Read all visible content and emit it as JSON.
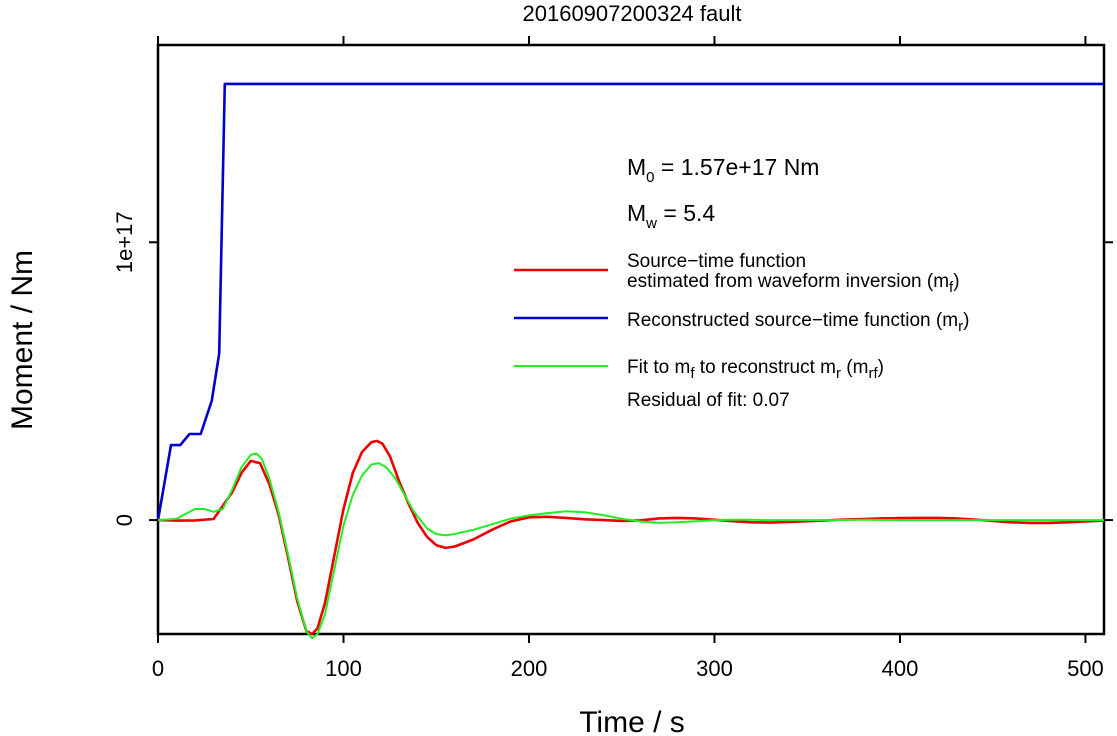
{
  "chart_data": {
    "type": "line",
    "title": "20160907200324 fault",
    "xlabel": "Time / s",
    "ylabel": "Moment / Nm",
    "xlim": [
      0,
      510
    ],
    "ylim": [
      -4.1e+16,
      1.71e+17
    ],
    "x_ticks": [
      {
        "value": 0,
        "label": "0"
      },
      {
        "value": 100,
        "label": "100"
      },
      {
        "value": 200,
        "label": "200"
      },
      {
        "value": 300,
        "label": "300"
      },
      {
        "value": 400,
        "label": "400"
      },
      {
        "value": 500,
        "label": "500"
      }
    ],
    "y_ticks": [
      {
        "value": 0,
        "label": "0"
      },
      {
        "value": 1e+17,
        "label": "1e+17"
      }
    ],
    "grid": false,
    "annotations": {
      "m0": {
        "main": "M",
        "sub": "0",
        "rest": " = 1.57e+17 Nm"
      },
      "mw": {
        "main": "M",
        "sub": "w",
        "rest": " = 5.4"
      },
      "residual": "Residual of fit: 0.07"
    },
    "legend": {
      "placement": "right",
      "entries": [
        {
          "series": "mf",
          "color": "#ee0000",
          "line1": "Source−time function",
          "line2": "estimated from waveform inversion (m",
          "sub": "f",
          "close": ")"
        },
        {
          "series": "mr",
          "color": "#0000cc",
          "line1": "Reconstructed source−time function (m",
          "sub": "r",
          "close": ")"
        },
        {
          "series": "mrf",
          "color": "#22ee22",
          "parts": [
            "Fit to m",
            "f",
            " to reconstruct m",
            "r",
            " (m",
            "rf",
            ")"
          ]
        }
      ]
    },
    "series": [
      {
        "id": "mf",
        "name": "Source−time function estimated from waveform inversion (mf)",
        "color": "#ee0000",
        "x": [
          0,
          10,
          20,
          30,
          40,
          45,
          50,
          55,
          60,
          65,
          70,
          75,
          80,
          83,
          86,
          90,
          95,
          100,
          105,
          110,
          115,
          118,
          121,
          125,
          130,
          135,
          140,
          145,
          150,
          155,
          160,
          170,
          180,
          190,
          200,
          210,
          220,
          230,
          240,
          250,
          260,
          270,
          280,
          290,
          300,
          310,
          320,
          330,
          340,
          350,
          360,
          370,
          380,
          390,
          400,
          410,
          420,
          430,
          440,
          450,
          460,
          470,
          480,
          490,
          500,
          510
        ],
        "y": [
          0,
          -200000000000000.0,
          -100000000000000.0,
          400000000000000.0,
          1e+16,
          1.7e+16,
          2.13e+16,
          2.05e+16,
          1.3e+16,
          2000000000000000.0,
          -1.3e+16,
          -2.9e+16,
          -4e+16,
          -4.1e+16,
          -3.9e+16,
          -3e+16,
          -1.3e+16,
          4000000000000000.0,
          1.7e+16,
          2.45e+16,
          2.8e+16,
          2.85e+16,
          2.75e+16,
          2.3e+16,
          1.4e+16,
          6000000000000000.0,
          -1000000000000000.0,
          -6000000000000000.0,
          -9000000000000000.0,
          -1e+16,
          -9500000000000000.0,
          -7000000000000000.0,
          -3500000000000000.0,
          -500000000000000.0,
          1000000000000000.0,
          1200000000000000.0,
          800000000000000.0,
          300000000000000.0,
          0.0,
          -300000000000000.0,
          -100000000000000.0,
          600000000000000.0,
          800000000000000.0,
          600000000000000.0,
          100000000000000.0,
          -400000000000000.0,
          -800000000000000.0,
          -900000000000000.0,
          -700000000000000.0,
          -400000000000000.0,
          -100000000000000.0,
          200000000000000.0,
          400000000000000.0,
          600000000000000.0,
          700000000000000.0,
          800000000000000.0,
          800000000000000.0,
          600000000000000.0,
          200000000000000.0,
          -300000000000000.0,
          -800000000000000.0,
          -1000000000000000.0,
          -1000000000000000.0,
          -800000000000000.0,
          -500000000000000.0,
          -200000000000000.0
        ]
      },
      {
        "id": "mr",
        "name": "Reconstructed source−time function (mr)",
        "color": "#0000cc",
        "x": [
          0,
          7,
          12,
          17,
          23,
          29,
          33,
          36,
          44,
          60,
          100,
          200,
          300,
          400,
          510
        ],
        "y": [
          0,
          2.7e+16,
          2.7e+16,
          3.1e+16,
          3.1e+16,
          4.3e+16,
          6e+16,
          1.57e+17,
          1.57e+17,
          1.57e+17,
          1.57e+17,
          1.57e+17,
          1.57e+17,
          1.57e+17,
          1.57e+17
        ]
      },
      {
        "id": "mrf",
        "name": "Fit to mf to reconstruct mr (mrf)",
        "color": "#22ee22",
        "x": [
          0,
          10,
          20,
          25,
          30,
          35,
          40,
          45,
          50,
          53,
          56,
          60,
          65,
          70,
          75,
          80,
          83,
          86,
          90,
          95,
          100,
          105,
          110,
          115,
          119,
          123,
          128,
          133,
          138,
          145,
          150,
          155,
          160,
          170,
          180,
          190,
          200,
          210,
          220,
          230,
          240,
          250,
          260,
          270,
          280,
          290,
          300,
          310,
          320,
          330,
          340,
          350,
          360,
          380,
          400,
          420,
          440,
          460,
          480,
          500,
          510
        ],
        "y": [
          0,
          500000000000000.0,
          4000000000000000.0,
          4000000000000000.0,
          3000000000000000.0,
          4000000000000000.0,
          1.1e+16,
          1.9e+16,
          2.35e+16,
          2.4e+16,
          2.2e+16,
          1.5e+16,
          3000000000000000.0,
          -1.2e+16,
          -2.8e+16,
          -4e+16,
          -4.25e+16,
          -4.1e+16,
          -3.4e+16,
          -1.8e+16,
          -2000000000000000.0,
          9000000000000000.0,
          1.6e+16,
          2e+16,
          2.05e+16,
          1.9e+16,
          1.5e+16,
          9000000000000000.0,
          3000000000000000.0,
          -3000000000000000.0,
          -5000000000000000.0,
          -5500000000000000.0,
          -5000000000000000.0,
          -3500000000000000.0,
          -1500000000000000.0,
          500000000000000.0,
          1700000000000000.0,
          2500000000000000.0,
          3200000000000000.0,
          2800000000000000.0,
          1800000000000000.0,
          500000000000000.0,
          -500000000000000.0,
          -1000000000000000.0,
          -800000000000000.0,
          -400000000000000.0,
          0.0,
          100000000000000.0,
          100000000000000.0,
          0.0,
          0.0,
          0.0,
          0.0,
          100000000000000.0,
          0.0,
          0.0,
          0.0,
          0.0,
          0.0,
          0.0,
          0.0
        ]
      }
    ]
  }
}
